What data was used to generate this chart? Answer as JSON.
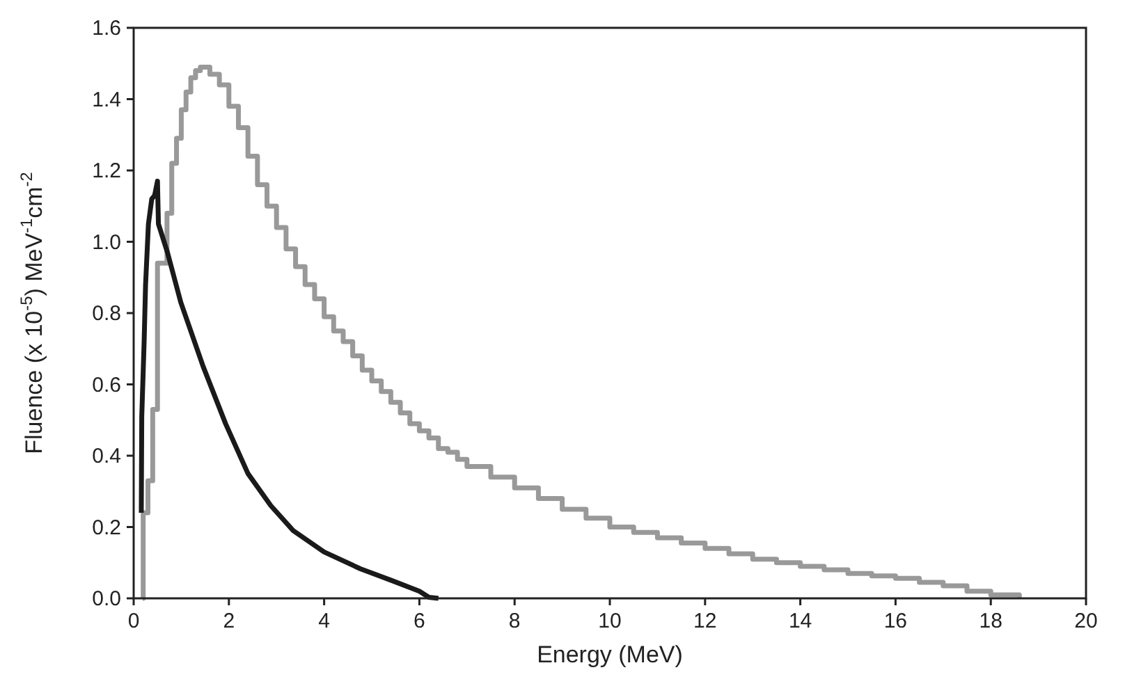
{
  "chart_data": {
    "type": "line",
    "xlabel": "Energy (MeV)",
    "ylabel": "Fluence (x 10$^{-5}$) MeV$^{-1}$cm$^{-2}$",
    "xlim": [
      0,
      20
    ],
    "xticks": [
      0,
      2,
      4,
      6,
      8,
      10,
      12,
      14,
      16,
      18,
      20
    ],
    "ylim": [
      0,
      1.6
    ],
    "yticks": [
      {
        "value": 0,
        "label": "0.0"
      },
      {
        "value": 0.2,
        "label": "0.2"
      },
      {
        "value": 0.4,
        "label": "0.4"
      },
      {
        "value": 0.6,
        "label": "0.6"
      },
      {
        "value": 0.8,
        "label": "0.8"
      },
      {
        "value": 1.0,
        "label": "1.0"
      },
      {
        "value": 1.2,
        "label": "1.2"
      },
      {
        "value": 1.4,
        "label": "1.4"
      },
      {
        "value": 1.6,
        "label": "1.6"
      }
    ],
    "grid": false,
    "marker": "none",
    "line_style": "solid",
    "series": [
      {
        "type": "step",
        "color": "#999999",
        "x": [
          0.19,
          0.2,
          0.3,
          0.4,
          0.5,
          0.6,
          0.7,
          0.8,
          0.9,
          1.0,
          1.1,
          1.2,
          1.3,
          1.4,
          1.5,
          1.6,
          1.8,
          2.0,
          2.2,
          2.4,
          2.6,
          2.8,
          3.0,
          3.2,
          3.4,
          3.6,
          3.8,
          4.0,
          4.2,
          4.4,
          4.6,
          4.8,
          5.0,
          5.2,
          5.4,
          5.6,
          5.8,
          6.0,
          6.2,
          6.4,
          6.6,
          6.8,
          7.0,
          7.5,
          8,
          8.5,
          9,
          9.5,
          10,
          10.5,
          11,
          11.5,
          12,
          12.5,
          13,
          13.5,
          14,
          14.5,
          15,
          15.5,
          16,
          16.5,
          17,
          17.5,
          18,
          18.6
        ],
        "values": [
          0,
          0.24,
          0.33,
          0.53,
          0.94,
          0.94,
          1.08,
          1.22,
          1.29,
          1.37,
          1.42,
          1.46,
          1.48,
          1.49,
          1.49,
          1.47,
          1.44,
          1.38,
          1.32,
          1.24,
          1.16,
          1.1,
          1.04,
          0.98,
          0.93,
          0.88,
          0.84,
          0.79,
          0.75,
          0.72,
          0.68,
          0.64,
          0.61,
          0.58,
          0.55,
          0.52,
          0.49,
          0.47,
          0.45,
          0.42,
          0.41,
          0.39,
          0.37,
          0.34,
          0.31,
          0.28,
          0.25,
          0.225,
          0.2,
          0.185,
          0.17,
          0.155,
          0.14,
          0.125,
          0.11,
          0.1,
          0.09,
          0.08,
          0.07,
          0.063,
          0.056,
          0.045,
          0.035,
          0.02,
          0.01,
          0
        ]
      },
      {
        "color": "#1a1a1a",
        "x": [
          0.16,
          0.17,
          0.22,
          0.25,
          0.31,
          0.38,
          0.44,
          0.5,
          0.52,
          0.71,
          0.99,
          1.46,
          1.93,
          2.4,
          2.88,
          3.35,
          4.0,
          4.76,
          5.42,
          6.0,
          6.2,
          6.4
        ],
        "values": [
          0.24,
          0.51,
          0.72,
          0.88,
          1.05,
          1.12,
          1.13,
          1.17,
          1.05,
          0.97,
          0.83,
          0.65,
          0.49,
          0.35,
          0.26,
          0.19,
          0.13,
          0.083,
          0.05,
          0.02,
          0.003,
          0
        ]
      }
    ]
  }
}
